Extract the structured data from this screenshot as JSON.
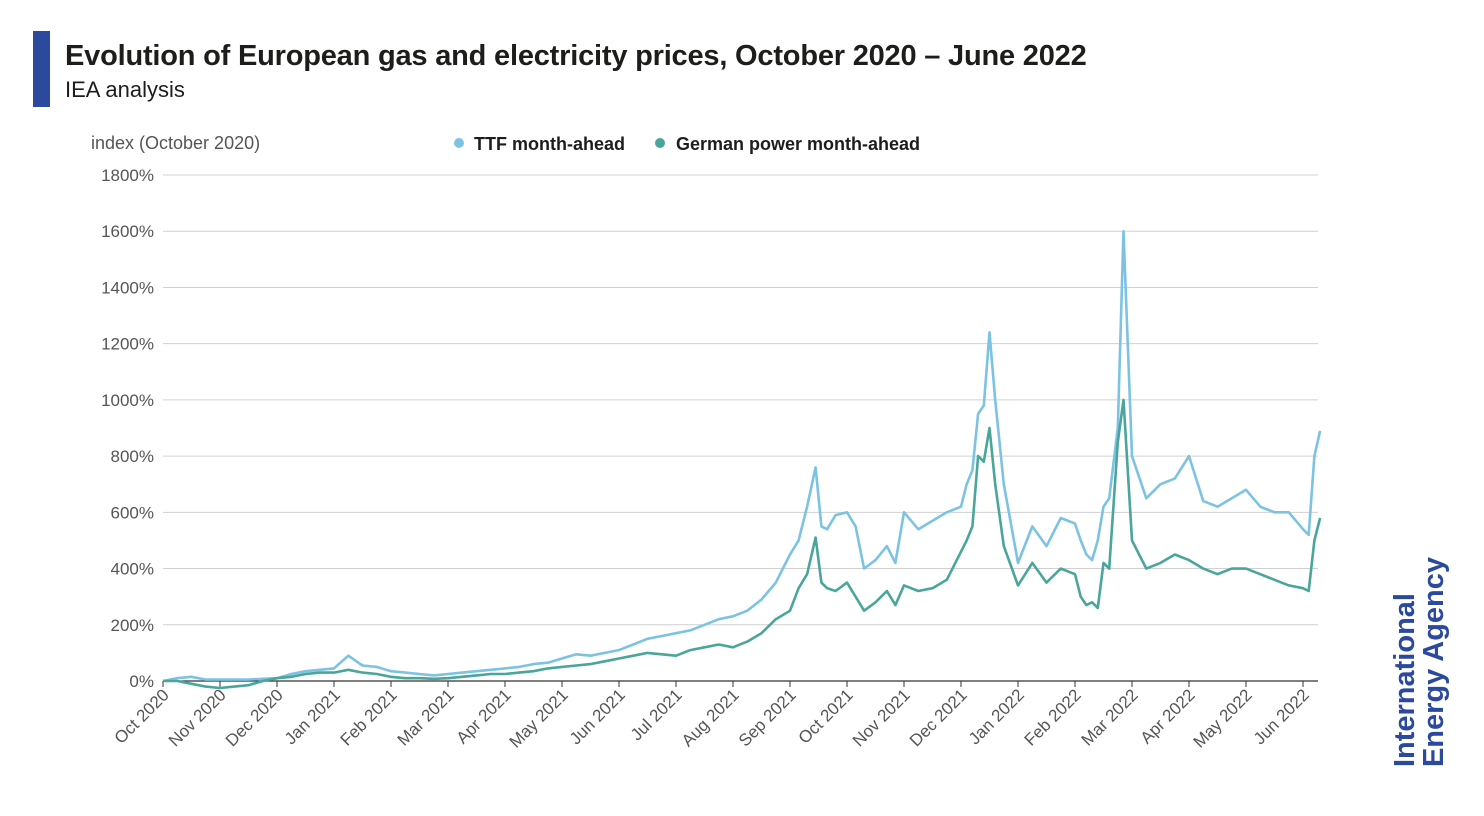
{
  "header": {
    "title": "Evolution of European gas and electricity prices, October 2020 – June 2022",
    "subtitle": "IEA analysis"
  },
  "logo": {
    "line1": "International",
    "line2": "Energy Agency"
  },
  "colors": {
    "accent": "#2b4a9e",
    "ttf": "#7cc3e3",
    "power": "#4aa59a",
    "grid": "#d0d0d0"
  },
  "chart_data": {
    "type": "line",
    "title": "Evolution of European gas and electricity prices, October 2020 – June 2022",
    "subtitle": "IEA analysis",
    "ylabel": "index (October 2020)",
    "ylim": [
      0,
      1800
    ],
    "yticks": [
      0,
      200,
      400,
      600,
      800,
      1000,
      1200,
      1400,
      1600,
      1800
    ],
    "y_tick_labels": [
      "0%",
      "200%",
      "400%",
      "600%",
      "800%",
      "1000%",
      "1200%",
      "1400%",
      "1600%",
      "1800%"
    ],
    "x_tick_labels": [
      "Oct 2020",
      "Nov 2020",
      "Dec 2020",
      "Jan 2021",
      "Feb 2021",
      "Mar 2021",
      "Apr 2021",
      "May 2021",
      "Jun 2021",
      "Jul 2021",
      "Aug 2021",
      "Sep 2021",
      "Oct 2021",
      "Nov 2021",
      "Dec 2021",
      "Jan 2022",
      "Feb 2022",
      "Mar 2022",
      "Apr 2022",
      "May 2022",
      "Jun 2022"
    ],
    "x_unit": "months since October 2020",
    "grid": true,
    "legend_position": "top",
    "series": [
      {
        "name": "TTF month-ahead",
        "color": "#7cc3e3",
        "x": [
          0,
          0.25,
          0.5,
          0.75,
          1.0,
          1.25,
          1.5,
          1.75,
          2.0,
          2.25,
          2.5,
          2.75,
          3.0,
          3.25,
          3.5,
          3.75,
          4.0,
          4.25,
          4.5,
          4.75,
          5.0,
          5.25,
          5.5,
          5.75,
          6.0,
          6.25,
          6.5,
          6.75,
          7.0,
          7.25,
          7.5,
          7.75,
          8.0,
          8.25,
          8.5,
          8.75,
          9.0,
          9.25,
          9.5,
          9.75,
          10.0,
          10.25,
          10.5,
          10.75,
          11.0,
          11.15,
          11.3,
          11.45,
          11.55,
          11.65,
          11.8,
          12.0,
          12.15,
          12.3,
          12.5,
          12.7,
          12.85,
          13.0,
          13.25,
          13.5,
          13.75,
          14.0,
          14.1,
          14.2,
          14.3,
          14.4,
          14.5,
          14.6,
          14.75,
          15.0,
          15.25,
          15.5,
          15.75,
          16.0,
          16.1,
          16.2,
          16.3,
          16.4,
          16.5,
          16.6,
          16.75,
          16.85,
          17.0,
          17.25,
          17.5,
          17.75,
          18.0,
          18.25,
          18.5,
          18.75,
          19.0,
          19.25,
          19.5,
          19.75,
          20.0,
          20.1,
          20.2,
          20.3
        ],
        "values": [
          0,
          10,
          15,
          5,
          5,
          5,
          5,
          8,
          10,
          25,
          35,
          40,
          45,
          90,
          55,
          50,
          35,
          30,
          25,
          20,
          25,
          30,
          35,
          40,
          45,
          50,
          60,
          65,
          80,
          95,
          90,
          100,
          110,
          130,
          150,
          160,
          170,
          180,
          200,
          220,
          230,
          250,
          290,
          350,
          450,
          500,
          620,
          760,
          550,
          540,
          590,
          600,
          550,
          400,
          430,
          480,
          420,
          600,
          540,
          570,
          600,
          620,
          700,
          750,
          950,
          980,
          1240,
          1000,
          700,
          420,
          550,
          480,
          580,
          560,
          500,
          450,
          430,
          500,
          620,
          650,
          900,
          1600,
          800,
          650,
          700,
          720,
          800,
          640,
          620,
          650,
          680,
          620,
          600,
          600,
          540,
          520,
          800,
          890
        ]
      },
      {
        "name": "German power month-ahead",
        "color": "#4aa59a",
        "x": [
          0,
          0.25,
          0.5,
          0.75,
          1.0,
          1.25,
          1.5,
          1.75,
          2.0,
          2.25,
          2.5,
          2.75,
          3.0,
          3.25,
          3.5,
          3.75,
          4.0,
          4.25,
          4.5,
          4.75,
          5.0,
          5.25,
          5.5,
          5.75,
          6.0,
          6.25,
          6.5,
          6.75,
          7.0,
          7.25,
          7.5,
          7.75,
          8.0,
          8.25,
          8.5,
          8.75,
          9.0,
          9.25,
          9.5,
          9.75,
          10.0,
          10.25,
          10.5,
          10.75,
          11.0,
          11.15,
          11.3,
          11.45,
          11.55,
          11.65,
          11.8,
          12.0,
          12.15,
          12.3,
          12.5,
          12.7,
          12.85,
          13.0,
          13.25,
          13.5,
          13.75,
          14.0,
          14.1,
          14.2,
          14.3,
          14.4,
          14.5,
          14.6,
          14.75,
          15.0,
          15.25,
          15.5,
          15.75,
          16.0,
          16.1,
          16.2,
          16.3,
          16.4,
          16.5,
          16.6,
          16.75,
          16.85,
          17.0,
          17.25,
          17.5,
          17.75,
          18.0,
          18.25,
          18.5,
          18.75,
          19.0,
          19.25,
          19.5,
          19.75,
          20.0,
          20.1,
          20.2,
          20.3
        ],
        "values": [
          0,
          0,
          -10,
          -20,
          -25,
          -20,
          -15,
          0,
          10,
          15,
          25,
          30,
          30,
          40,
          30,
          25,
          15,
          10,
          10,
          8,
          10,
          15,
          20,
          25,
          25,
          30,
          35,
          45,
          50,
          55,
          60,
          70,
          80,
          90,
          100,
          95,
          90,
          110,
          120,
          130,
          120,
          140,
          170,
          220,
          250,
          330,
          380,
          510,
          350,
          330,
          320,
          350,
          300,
          250,
          280,
          320,
          270,
          340,
          320,
          330,
          360,
          460,
          500,
          550,
          800,
          780,
          900,
          700,
          480,
          340,
          420,
          350,
          400,
          380,
          300,
          270,
          280,
          260,
          420,
          400,
          850,
          1000,
          500,
          400,
          420,
          450,
          430,
          400,
          380,
          400,
          400,
          380,
          360,
          340,
          330,
          320,
          500,
          580
        ]
      }
    ]
  }
}
